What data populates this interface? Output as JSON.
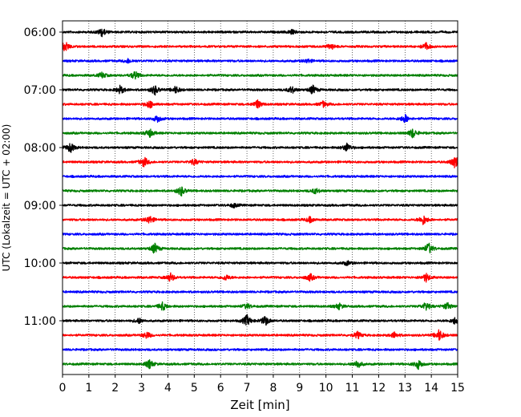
{
  "chart_data": {
    "type": "line",
    "title": "",
    "xlabel": "Zeit  [min]",
    "ylabel": "UTC (Lokalzeit = UTC + 02:00)",
    "xlim": [
      0,
      15
    ],
    "x_ticks": [
      "0",
      "1",
      "2",
      "3",
      "4",
      "5",
      "6",
      "7",
      "8",
      "9",
      "10",
      "11",
      "12",
      "13",
      "14",
      "15"
    ],
    "y_tick_labels": [
      "06:00",
      "07:00",
      "08:00",
      "09:00",
      "10:00",
      "11:00"
    ],
    "grid": "vertical dotted lines at each minute",
    "legend": "none",
    "trace_colors": [
      "#000000",
      "#ff0000",
      "#0000ff",
      "#008000"
    ],
    "traces": [
      {
        "start": "06:00",
        "color": "#000000",
        "events": [
          [
            1.5,
            0.6
          ],
          [
            8.7,
            0.3
          ]
        ]
      },
      {
        "start": "06:15",
        "color": "#ff0000",
        "events": [
          [
            0.1,
            0.7
          ],
          [
            10.2,
            0.4
          ],
          [
            13.8,
            0.5
          ]
        ]
      },
      {
        "start": "06:30",
        "color": "#0000ff",
        "events": [
          [
            2.5,
            0.3
          ],
          [
            9.3,
            0.3
          ]
        ]
      },
      {
        "start": "06:45",
        "color": "#008000",
        "events": [
          [
            1.5,
            0.4
          ],
          [
            2.75,
            0.6
          ]
        ]
      },
      {
        "start": "07:00",
        "color": "#000000",
        "events": [
          [
            2.2,
            0.6
          ],
          [
            3.5,
            0.7
          ],
          [
            4.3,
            0.5
          ],
          [
            8.7,
            0.5
          ],
          [
            9.5,
            0.6
          ]
        ]
      },
      {
        "start": "07:15",
        "color": "#ff0000",
        "events": [
          [
            3.3,
            0.6
          ],
          [
            7.4,
            0.6
          ],
          [
            9.9,
            0.4
          ]
        ]
      },
      {
        "start": "07:30",
        "color": "#0000ff",
        "events": [
          [
            3.6,
            0.5
          ],
          [
            13.0,
            0.6
          ]
        ]
      },
      {
        "start": "07:45",
        "color": "#008000",
        "events": [
          [
            3.3,
            0.6
          ],
          [
            13.3,
            0.7
          ]
        ]
      },
      {
        "start": "08:00",
        "color": "#000000",
        "events": [
          [
            0.3,
            0.7
          ],
          [
            10.8,
            0.6
          ]
        ]
      },
      {
        "start": "08:15",
        "color": "#ff0000",
        "events": [
          [
            3.1,
            0.7
          ],
          [
            5.0,
            0.4
          ],
          [
            14.9,
            0.9
          ]
        ]
      },
      {
        "start": "08:30",
        "color": "#0000ff",
        "events": []
      },
      {
        "start": "08:45",
        "color": "#008000",
        "events": [
          [
            4.5,
            0.7
          ],
          [
            9.6,
            0.4
          ]
        ]
      },
      {
        "start": "09:00",
        "color": "#000000",
        "events": [
          [
            6.5,
            0.3
          ]
        ]
      },
      {
        "start": "09:15",
        "color": "#ff0000",
        "events": [
          [
            3.3,
            0.6
          ],
          [
            9.4,
            0.4
          ],
          [
            13.7,
            0.7
          ]
        ]
      },
      {
        "start": "09:30",
        "color": "#0000ff",
        "events": []
      },
      {
        "start": "09:45",
        "color": "#008000",
        "events": [
          [
            3.5,
            0.7
          ],
          [
            13.9,
            0.8
          ]
        ]
      },
      {
        "start": "10:00",
        "color": "#000000",
        "events": [
          [
            10.8,
            0.3
          ]
        ]
      },
      {
        "start": "10:15",
        "color": "#ff0000",
        "events": [
          [
            4.1,
            0.6
          ],
          [
            6.2,
            0.4
          ],
          [
            9.4,
            0.5
          ],
          [
            13.8,
            0.6
          ]
        ]
      },
      {
        "start": "10:30",
        "color": "#0000ff",
        "events": []
      },
      {
        "start": "10:45",
        "color": "#008000",
        "events": [
          [
            3.8,
            0.6
          ],
          [
            7.0,
            0.4
          ],
          [
            10.5,
            0.4
          ],
          [
            13.8,
            0.6
          ],
          [
            14.6,
            0.5
          ]
        ]
      },
      {
        "start": "11:00",
        "color": "#000000",
        "events": [
          [
            2.9,
            0.4
          ],
          [
            7.0,
            0.8
          ],
          [
            7.7,
            0.7
          ],
          [
            14.9,
            0.5
          ]
        ]
      },
      {
        "start": "11:15",
        "color": "#ff0000",
        "events": [
          [
            3.2,
            0.5
          ],
          [
            11.2,
            0.5
          ],
          [
            12.6,
            0.4
          ],
          [
            14.3,
            0.8
          ]
        ]
      },
      {
        "start": "11:30",
        "color": "#0000ff",
        "events": []
      },
      {
        "start": "11:45",
        "color": "#008000",
        "events": [
          [
            3.3,
            0.6
          ],
          [
            11.2,
            0.6
          ],
          [
            13.5,
            0.7
          ]
        ]
      }
    ]
  }
}
